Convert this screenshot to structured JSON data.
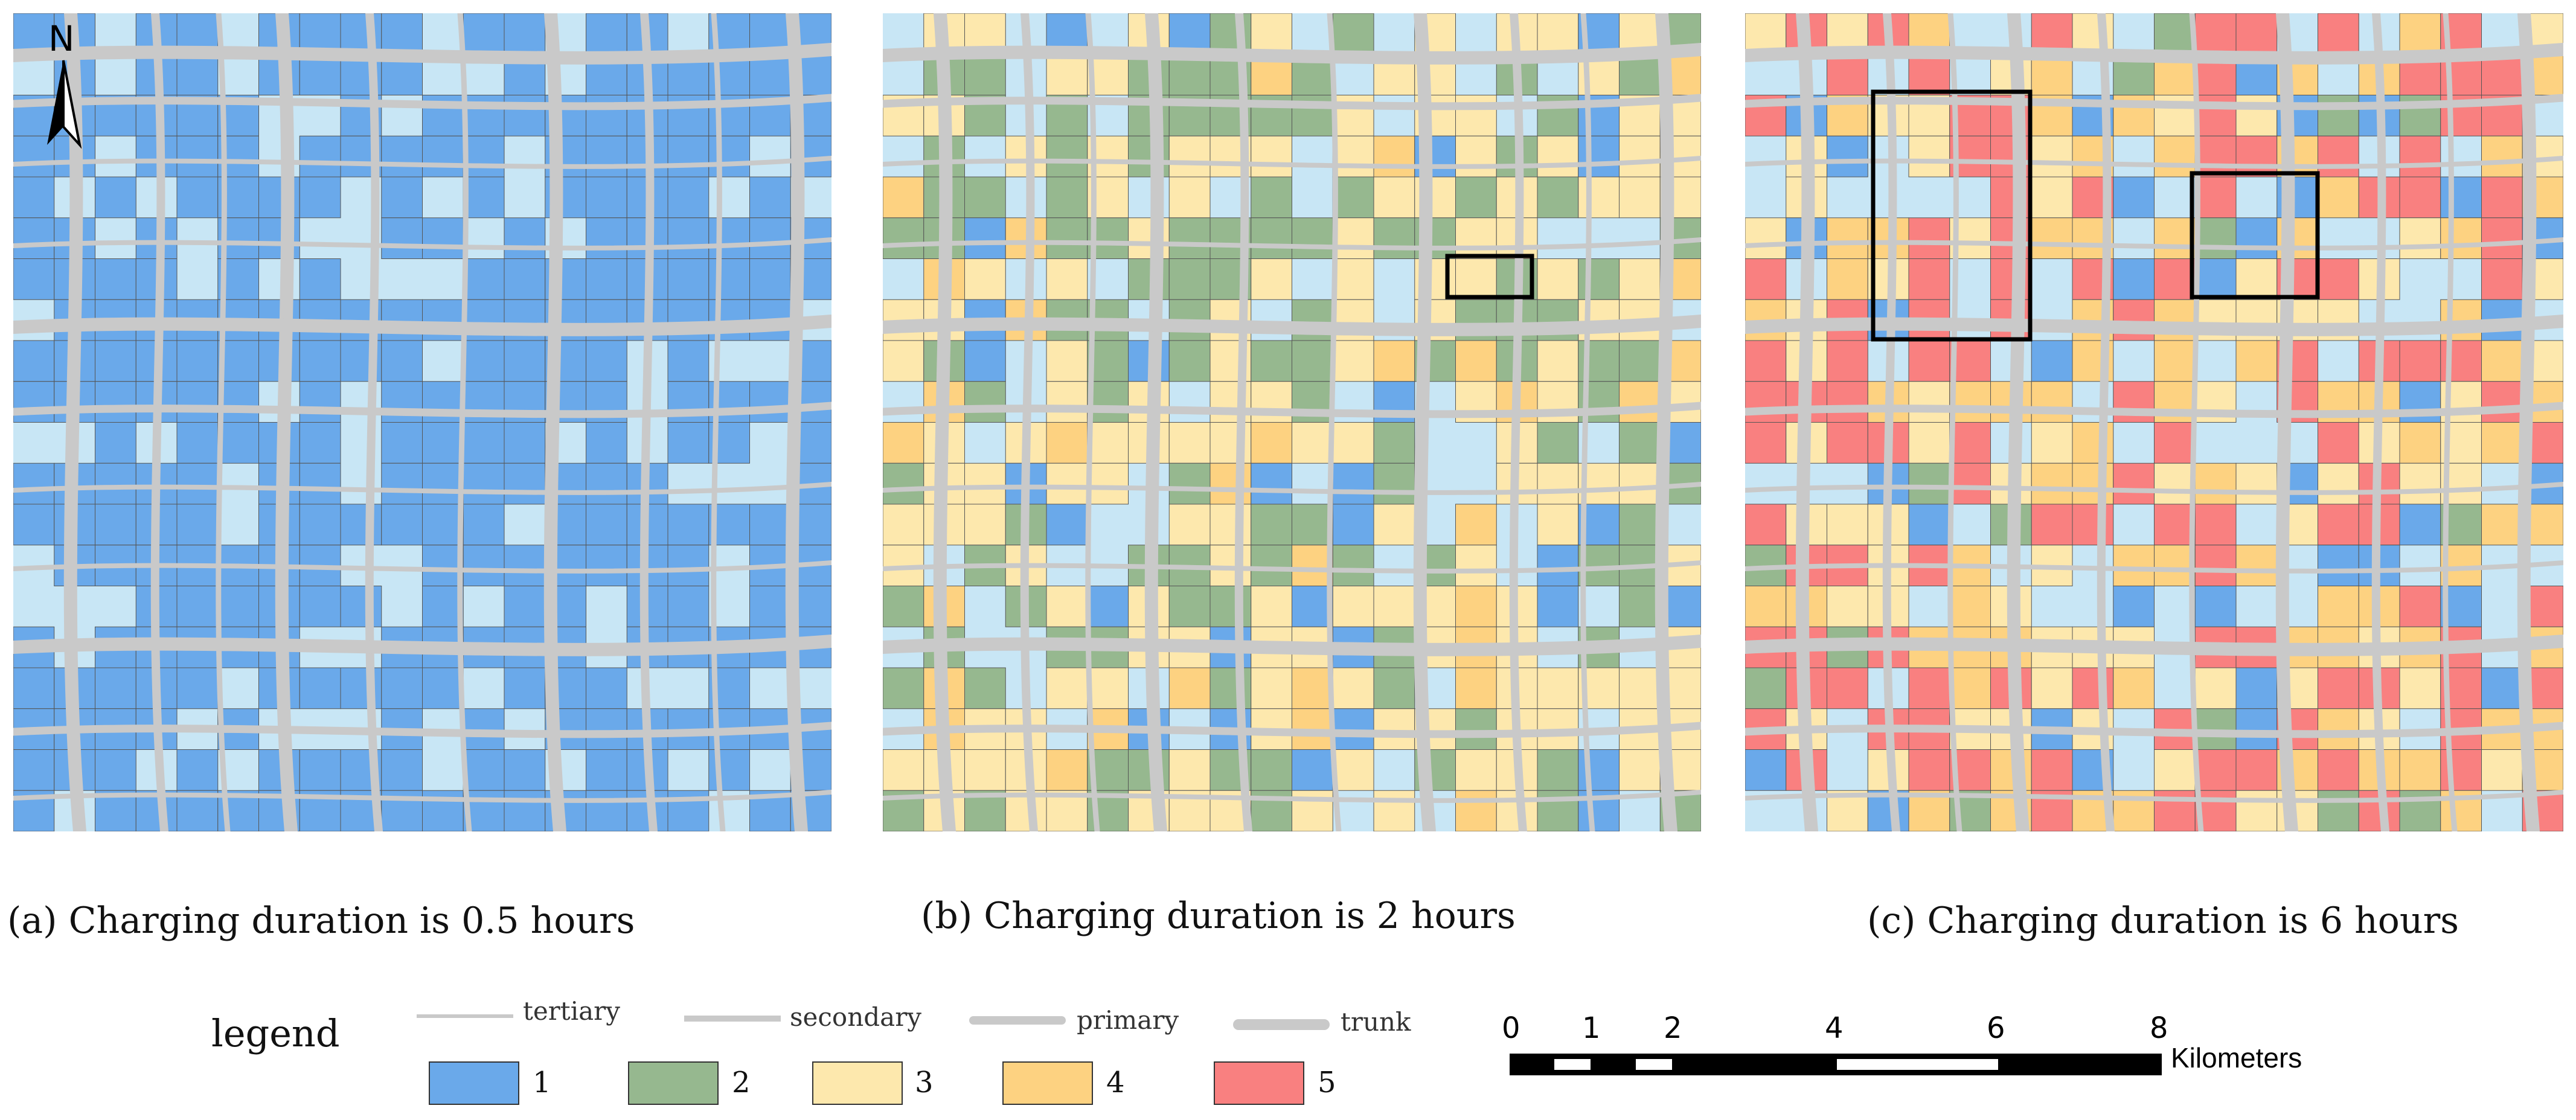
{
  "north_arrow": "N",
  "panels": [
    {
      "caption": "(a) Charging duration is 0.5 hours",
      "levels_present": [
        1
      ]
    },
    {
      "caption": "(b) Charging duration is 2 hours",
      "levels_present": [
        1,
        2,
        3,
        4
      ]
    },
    {
      "caption": "(c) Charging duration is 6 hours",
      "levels_present": [
        1,
        2,
        3,
        4,
        5
      ]
    }
  ],
  "legend": {
    "title": "legend",
    "roads": [
      {
        "label": "tertiary"
      },
      {
        "label": "secondary"
      },
      {
        "label": "primary"
      },
      {
        "label": "trunk"
      }
    ],
    "levels": [
      {
        "label": "1",
        "color": "#6aa9ea"
      },
      {
        "label": "2",
        "color": "#96b88f"
      },
      {
        "label": "3",
        "color": "#fde8ad"
      },
      {
        "label": "4",
        "color": "#fdd281"
      },
      {
        "label": "5",
        "color": "#f98080"
      }
    ]
  },
  "scale_bar": {
    "ticks": [
      "0",
      "1",
      "2",
      "4",
      "6",
      "8"
    ],
    "unit": "Kilometers"
  },
  "colors": {
    "background_area": "#c8e6f5",
    "road": "#c9c9c9",
    "grid_line": "#555555"
  }
}
